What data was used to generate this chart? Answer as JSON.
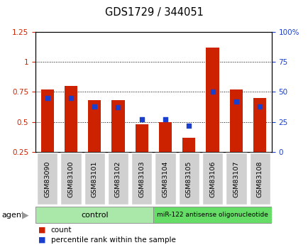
{
  "title": "GDS1729 / 344051",
  "categories": [
    "GSM83090",
    "GSM83100",
    "GSM83101",
    "GSM83102",
    "GSM83103",
    "GSM83104",
    "GSM83105",
    "GSM83106",
    "GSM83107",
    "GSM83108"
  ],
  "red_bars": [
    0.77,
    0.8,
    0.68,
    0.68,
    0.48,
    0.5,
    0.37,
    1.12,
    0.77,
    0.7
  ],
  "blue_squares_pct": [
    45,
    45,
    38,
    37,
    27,
    27,
    22,
    50,
    42,
    38
  ],
  "ylim_left": [
    0.25,
    1.25
  ],
  "ylim_right": [
    0,
    100
  ],
  "yticks_left": [
    0.25,
    0.5,
    0.75,
    1.0,
    1.25
  ],
  "yticks_right": [
    0,
    25,
    50,
    75,
    100
  ],
  "red_color": "#cc2200",
  "blue_color": "#1a3fcc",
  "bar_width": 0.55,
  "control_label": "control",
  "treatment_label": "miR-122 antisense oligonucleotide",
  "agent_label": "agent",
  "legend_count": "count",
  "legend_pct": "percentile rank within the sample",
  "baseline": 0.25,
  "fig_width": 4.35,
  "fig_height": 3.45,
  "dpi": 100
}
